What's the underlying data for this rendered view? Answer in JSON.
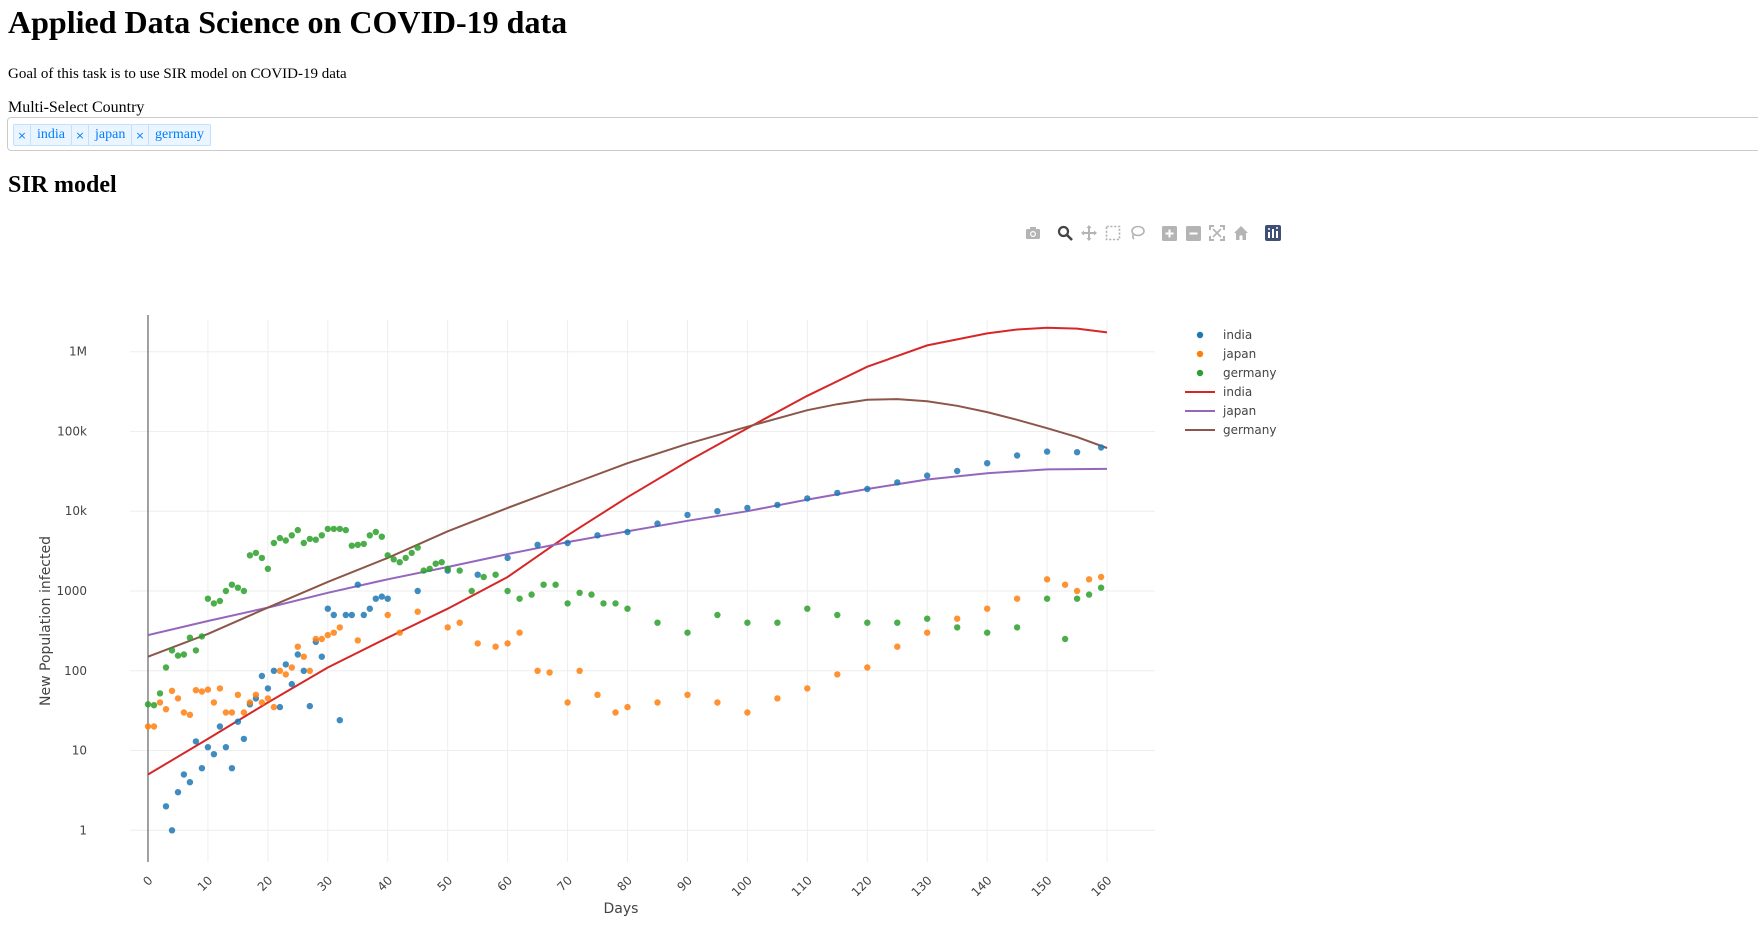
{
  "page": {
    "title": "Applied Data Science on COVID-19 data",
    "goal": "Goal of this task is to use SIR model on COVID-19 data",
    "section_title": "SIR model"
  },
  "country_select": {
    "label": "Multi-Select Country",
    "selected": [
      "india",
      "japan",
      "germany"
    ],
    "remove_glyph": "×"
  },
  "modebar": {
    "buttons": [
      "camera-icon",
      "zoom-icon",
      "pan-icon",
      "box-select-icon",
      "lasso-icon",
      "zoom-in-icon",
      "zoom-out-icon",
      "autoscale-icon",
      "reset-axes-icon",
      "plotly-logo-icon"
    ]
  },
  "chart_data": {
    "type": "scatter",
    "xlabel": "Days",
    "ylabel": "New Population infected",
    "xlim": [
      -3,
      168
    ],
    "ylim": [
      0.4,
      2500000
    ],
    "y_scale": "log",
    "grid": true,
    "legend_position": "top-right",
    "x_ticks": [
      0,
      10,
      20,
      30,
      40,
      50,
      60,
      70,
      80,
      90,
      100,
      110,
      120,
      130,
      140,
      150,
      160
    ],
    "y_ticks": [
      {
        "value": 1,
        "label": "1"
      },
      {
        "value": 10,
        "label": "10"
      },
      {
        "value": 100,
        "label": "100"
      },
      {
        "value": 1000,
        "label": "1000"
      },
      {
        "value": 10000,
        "label": "10k"
      },
      {
        "value": 100000,
        "label": "100k"
      },
      {
        "value": 1000000,
        "label": "1M"
      }
    ],
    "colors": {
      "india_points": "#1f77b4",
      "japan_points": "#ff7f0e",
      "germany_points": "#2ca02c",
      "india_fit": "#d62728",
      "japan_fit": "#9467bd",
      "germany_fit": "#8c564b"
    },
    "series": [
      {
        "name": "india",
        "kind": "markers",
        "color": "#1f77b4",
        "x": [
          3,
          4,
          5,
          6,
          7,
          8,
          9,
          10,
          11,
          12,
          13,
          14,
          15,
          16,
          17,
          18,
          19,
          20,
          21,
          22,
          23,
          24,
          25,
          26,
          27,
          28,
          29,
          30,
          31,
          32,
          33,
          34,
          35,
          36,
          37,
          38,
          39,
          40,
          45,
          50,
          55,
          60,
          65,
          70,
          75,
          80,
          85,
          90,
          95,
          100,
          105,
          110,
          115,
          120,
          125,
          130,
          135,
          140,
          145,
          150,
          155,
          159
        ],
        "y": [
          2,
          1,
          3,
          5,
          4,
          13,
          6,
          11,
          9,
          20,
          11,
          6,
          23,
          14,
          38,
          45,
          86,
          60,
          100,
          35,
          120,
          68,
          160,
          100,
          36,
          230,
          150,
          600,
          500,
          24,
          500,
          500,
          1200,
          500,
          600,
          800,
          850,
          800,
          1000,
          1800,
          1600,
          2600,
          3800,
          4000,
          5000,
          5500,
          7000,
          9000,
          10000,
          11000,
          12000,
          14500,
          17000,
          19000,
          23000,
          28000,
          32000,
          40000,
          50000,
          56000,
          55000,
          63000
        ]
      },
      {
        "name": "japan",
        "kind": "markers",
        "color": "#ff7f0e",
        "x": [
          0,
          1,
          2,
          3,
          4,
          5,
          6,
          7,
          8,
          9,
          10,
          11,
          12,
          13,
          14,
          15,
          16,
          17,
          18,
          19,
          20,
          21,
          22,
          23,
          24,
          25,
          26,
          27,
          28,
          29,
          30,
          31,
          32,
          35,
          40,
          42,
          45,
          50,
          52,
          55,
          58,
          60,
          62,
          65,
          67,
          70,
          72,
          75,
          78,
          80,
          85,
          90,
          95,
          100,
          105,
          110,
          115,
          120,
          125,
          130,
          135,
          140,
          145,
          150,
          153,
          155,
          157,
          159
        ],
        "y": [
          20,
          20,
          40,
          33,
          56,
          45,
          30,
          28,
          57,
          55,
          58,
          40,
          60,
          30,
          30,
          50,
          30,
          40,
          50,
          40,
          45,
          35,
          100,
          90,
          110,
          200,
          150,
          100,
          250,
          250,
          280,
          300,
          350,
          240,
          500,
          300,
          550,
          350,
          400,
          220,
          200,
          220,
          300,
          100,
          95,
          40,
          100,
          50,
          30,
          35,
          40,
          50,
          40,
          30,
          45,
          60,
          90,
          110,
          200,
          300,
          450,
          600,
          800,
          1400,
          1200,
          1000,
          1400,
          1500
        ]
      },
      {
        "name": "germany",
        "kind": "markers",
        "color": "#2ca02c",
        "x": [
          0,
          1,
          2,
          3,
          4,
          5,
          6,
          7,
          8,
          9,
          10,
          11,
          12,
          13,
          14,
          15,
          16,
          17,
          18,
          19,
          20,
          21,
          22,
          23,
          24,
          25,
          26,
          27,
          28,
          29,
          30,
          31,
          32,
          33,
          34,
          35,
          36,
          37,
          38,
          39,
          40,
          41,
          42,
          43,
          44,
          45,
          46,
          47,
          48,
          49,
          50,
          52,
          54,
          56,
          58,
          60,
          62,
          64,
          66,
          68,
          70,
          72,
          74,
          76,
          78,
          80,
          85,
          90,
          95,
          100,
          105,
          110,
          115,
          120,
          125,
          130,
          135,
          140,
          145,
          150,
          153,
          155,
          157,
          159
        ],
        "y": [
          38,
          37,
          52,
          110,
          180,
          155,
          160,
          260,
          180,
          270,
          800,
          700,
          750,
          1000,
          1200,
          1100,
          1000,
          2800,
          3000,
          2600,
          1900,
          4000,
          4600,
          4300,
          5000,
          5800,
          4000,
          4500,
          4400,
          5000,
          6000,
          6000,
          6000,
          5800,
          3700,
          3800,
          3900,
          5000,
          5500,
          4800,
          2800,
          2500,
          2300,
          2600,
          3000,
          3500,
          1800,
          1900,
          2200,
          2300,
          1900,
          1800,
          1000,
          1500,
          1600,
          1000,
          800,
          900,
          1200,
          1200,
          700,
          950,
          900,
          700,
          700,
          600,
          400,
          300,
          500,
          400,
          400,
          600,
          500,
          400,
          400,
          450,
          350,
          300,
          350,
          800,
          250,
          800,
          900,
          1100
        ]
      },
      {
        "name": "india",
        "kind": "line",
        "color": "#d62728",
        "x": [
          0,
          10,
          20,
          30,
          40,
          50,
          60,
          70,
          80,
          90,
          100,
          110,
          120,
          130,
          140,
          145,
          150,
          155,
          160
        ],
        "y": [
          5,
          14,
          40,
          110,
          260,
          600,
          1500,
          5000,
          15000,
          42000,
          110000,
          280000,
          650000,
          1200000,
          1700000,
          1900000,
          2000000,
          1950000,
          1750000
        ]
      },
      {
        "name": "japan",
        "kind": "line",
        "color": "#9467bd",
        "x": [
          0,
          10,
          20,
          30,
          40,
          50,
          60,
          70,
          80,
          90,
          100,
          110,
          120,
          130,
          140,
          150,
          160
        ],
        "y": [
          280,
          420,
          620,
          950,
          1400,
          2000,
          2900,
          4100,
          5600,
          7600,
          10000,
          14000,
          19000,
          25000,
          30000,
          33500,
          34000
        ]
      },
      {
        "name": "germany",
        "kind": "line",
        "color": "#8c564b",
        "x": [
          0,
          10,
          20,
          30,
          40,
          50,
          60,
          70,
          80,
          90,
          100,
          110,
          115,
          120,
          125,
          130,
          135,
          140,
          145,
          150,
          155,
          160
        ],
        "y": [
          150,
          290,
          620,
          1300,
          2600,
          5600,
          11000,
          21000,
          40000,
          70000,
          115000,
          185000,
          220000,
          250000,
          255000,
          240000,
          210000,
          175000,
          140000,
          110000,
          85000,
          62000
        ]
      }
    ]
  }
}
